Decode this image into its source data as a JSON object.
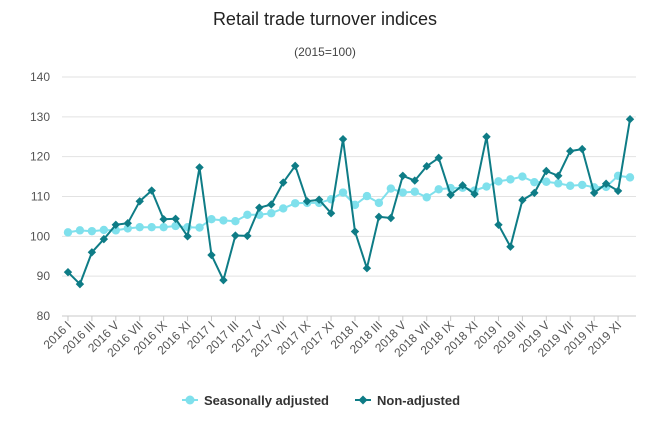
{
  "chart_data": {
    "type": "line",
    "title": "Retail trade turnover indices",
    "subtitle": "(2015=100)",
    "xlabel": "",
    "ylabel": "",
    "ylim": [
      80,
      140
    ],
    "yticks": [
      80,
      90,
      100,
      110,
      120,
      130,
      140
    ],
    "grid": "horizontal",
    "legend_position": "bottom",
    "x": [
      "2016 I",
      "2016 II",
      "2016 III",
      "2016 IV",
      "2016 V",
      "2016 VI",
      "2016 VII",
      "2016 VIII",
      "2016 IX",
      "2016 X",
      "2016 XI",
      "2016 XII",
      "2017 I",
      "2017 II",
      "2017 III",
      "2017 IV",
      "2017 V",
      "2017 VI",
      "2017 VII",
      "2017 VIII",
      "2017 IX",
      "2017 X",
      "2017 XI",
      "2017 XII",
      "2018 I",
      "2018 II",
      "2018 III",
      "2018 IV",
      "2018 V",
      "2018 VI",
      "2018 VII",
      "2018 VIII",
      "2018 IX",
      "2018 X",
      "2018 XI",
      "2018 XII",
      "2019 I",
      "2019 II",
      "2019 III",
      "2019 IV",
      "2019 V",
      "2019 VI",
      "2019 VII",
      "2019 VIII",
      "2019 IX",
      "2019 X",
      "2019 XI",
      "2019 XII"
    ],
    "tick_labels": [
      "2016 I",
      "2016 III",
      "2016 V",
      "2016 VII",
      "2016 IX",
      "2016 XI",
      "2017 I",
      "2017 III",
      "2017 V",
      "2017 VII",
      "2017 IX",
      "2017 XI",
      "2018 I",
      "2018 III",
      "2018 V",
      "2018 VII",
      "2018 IX",
      "2018 XI",
      "2019 I",
      "2019 III",
      "2019 V",
      "2019 VII",
      "2019 IX",
      "2019 XI"
    ],
    "series": [
      {
        "name": "Seasonally adjusted",
        "color": "#7fe0ec",
        "marker": "circle",
        "values": [
          101,
          101.5,
          101.3,
          101.6,
          101.5,
          102,
          102.3,
          102.3,
          102.3,
          102.6,
          102.3,
          102.2,
          104.3,
          104,
          103.8,
          105.4,
          105.4,
          105.8,
          107,
          108.3,
          108.4,
          108.4,
          109.3,
          111,
          107.9,
          110.1,
          108.4,
          112,
          111,
          111.2,
          109.8,
          111.8,
          112.1,
          112.2,
          111.5,
          112.5,
          113.8,
          114.3,
          115,
          113.6,
          113.7,
          113.3,
          112.7,
          112.9,
          112.3,
          112.4,
          115.2,
          114.8
        ]
      },
      {
        "name": "Non-adjusted",
        "color": "#0e7c86",
        "marker": "diamond",
        "values": [
          91,
          88,
          96,
          99.3,
          102.9,
          103.3,
          108.8,
          111.5,
          104.3,
          104.4,
          100,
          117.3,
          95.3,
          89,
          100.2,
          100.1,
          107.2,
          108,
          113.5,
          117.7,
          108.8,
          109.2,
          105.8,
          124.4,
          101.2,
          92,
          104.9,
          104.6,
          115.2,
          114,
          117.6,
          119.7,
          110.4,
          112.8,
          110.6,
          125,
          102.9,
          97.4,
          109.1,
          110.9,
          116.4,
          115.2,
          121.4,
          121.9,
          110.9,
          113.2,
          111.4,
          129.4
        ]
      }
    ]
  }
}
